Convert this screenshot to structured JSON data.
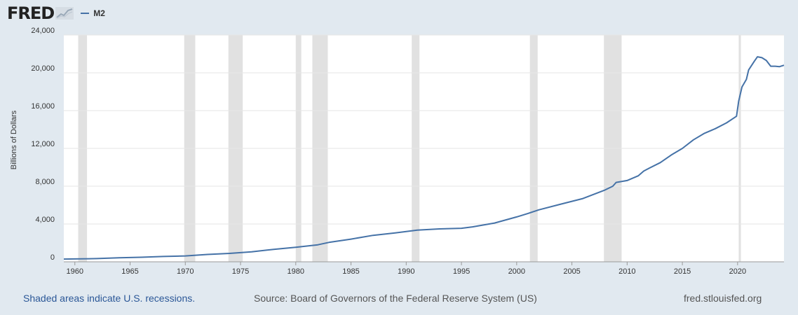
{
  "header": {
    "logo": "FRED",
    "logo_icon": "line-chart-icon",
    "legend_label": "M2",
    "legend_color": "#4572a7"
  },
  "footer": {
    "recession_note": "Shaded areas indicate U.S. recessions.",
    "source": "Source: Board of Governors of the Federal Reserve System (US)",
    "site": "fred.stlouisfed.org"
  },
  "chart_data": {
    "type": "line",
    "title": "",
    "xlabel": "",
    "ylabel": "Billions of Dollars",
    "xlim": [
      1959,
      2024.2
    ],
    "ylim": [
      0,
      24000
    ],
    "yticks": [
      0,
      4000,
      8000,
      12000,
      16000,
      20000,
      24000
    ],
    "ytick_labels": [
      "0",
      "4,000",
      "8,000",
      "12,000",
      "16,000",
      "20,000",
      "24,000"
    ],
    "xticks": [
      1960,
      1965,
      1970,
      1975,
      1980,
      1985,
      1990,
      1995,
      2000,
      2005,
      2010,
      2015,
      2020
    ],
    "grid": true,
    "recessions": [
      [
        1960.3,
        1961.1
      ],
      [
        1969.9,
        1970.9
      ],
      [
        1973.9,
        1975.2
      ],
      [
        1980.0,
        1980.5
      ],
      [
        1981.5,
        1982.9
      ],
      [
        1990.5,
        1991.2
      ],
      [
        2001.2,
        2001.9
      ],
      [
        2007.9,
        2009.5
      ],
      [
        2020.1,
        2020.3
      ]
    ],
    "series": [
      {
        "name": "M2",
        "color": "#4572a7",
        "x": [
          1959,
          1960,
          1962,
          1964,
          1966,
          1968,
          1970,
          1972,
          1974,
          1976,
          1978,
          1980,
          1982,
          1983,
          1985,
          1987,
          1989,
          1991,
          1993,
          1995,
          1996,
          1998,
          2000,
          2001,
          2002,
          2004,
          2006,
          2008,
          2008.7,
          2009,
          2010,
          2011,
          2011.5,
          2012,
          2013,
          2014,
          2015,
          2016,
          2017,
          2018,
          2019,
          2019.9,
          2020.1,
          2020.4,
          2020.8,
          2021,
          2021.5,
          2021.8,
          2022.2,
          2022.6,
          2023,
          2023.4,
          2023.8,
          2024.2
        ],
        "y": [
          290,
          300,
          340,
          420,
          480,
          560,
          620,
          780,
          890,
          1060,
          1320,
          1540,
          1800,
          2050,
          2400,
          2800,
          3050,
          3350,
          3480,
          3550,
          3700,
          4100,
          4750,
          5100,
          5500,
          6100,
          6700,
          7600,
          8000,
          8400,
          8600,
          9100,
          9600,
          9900,
          10500,
          11300,
          12000,
          12900,
          13600,
          14100,
          14700,
          15400,
          17000,
          18500,
          19300,
          20300,
          21200,
          21700,
          21600,
          21300,
          20700,
          20700,
          20650,
          20800
        ]
      }
    ]
  }
}
